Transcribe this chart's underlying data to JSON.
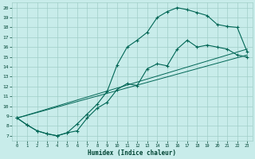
{
  "title": "",
  "xlabel": "Humidex (Indice chaleur)",
  "xlim": [
    -0.5,
    23.5
  ],
  "ylim": [
    6.5,
    20.5
  ],
  "xticks": [
    0,
    1,
    2,
    3,
    4,
    5,
    6,
    7,
    8,
    9,
    10,
    11,
    12,
    13,
    14,
    15,
    16,
    17,
    18,
    19,
    20,
    21,
    22,
    23
  ],
  "yticks": [
    7,
    8,
    9,
    10,
    11,
    12,
    13,
    14,
    15,
    16,
    17,
    18,
    19,
    20
  ],
  "bg_color": "#c8ecea",
  "grid_color": "#a0cfc8",
  "line_color": "#006655",
  "line1_x": [
    0,
    1,
    2,
    3,
    4,
    5,
    6,
    7,
    8,
    9,
    10,
    11,
    12,
    13,
    14,
    15,
    16,
    17,
    18,
    19,
    20,
    21,
    22,
    23
  ],
  "line1_y": [
    8.8,
    8.1,
    7.5,
    7.2,
    7.0,
    7.3,
    7.5,
    8.8,
    9.8,
    10.4,
    11.7,
    12.3,
    12.1,
    13.8,
    14.3,
    14.1,
    15.8,
    16.7,
    16.0,
    16.2,
    16.0,
    15.8,
    15.2,
    15.0
  ],
  "line2_x": [
    0,
    1,
    2,
    3,
    4,
    5,
    6,
    7,
    8,
    9,
    10,
    11,
    12,
    13,
    14,
    15,
    16,
    17,
    18,
    19,
    20,
    21,
    22,
    23
  ],
  "line2_y": [
    8.8,
    8.1,
    7.5,
    7.2,
    7.0,
    7.3,
    8.2,
    9.2,
    10.2,
    11.5,
    14.2,
    16.0,
    16.7,
    17.5,
    19.0,
    19.6,
    20.0,
    19.8,
    19.5,
    19.2,
    18.3,
    18.1,
    18.0,
    15.5
  ],
  "line3_x": [
    0,
    23
  ],
  "line3_y": [
    8.8,
    15.2
  ],
  "line4_x": [
    0,
    23
  ],
  "line4_y": [
    8.8,
    15.8
  ]
}
